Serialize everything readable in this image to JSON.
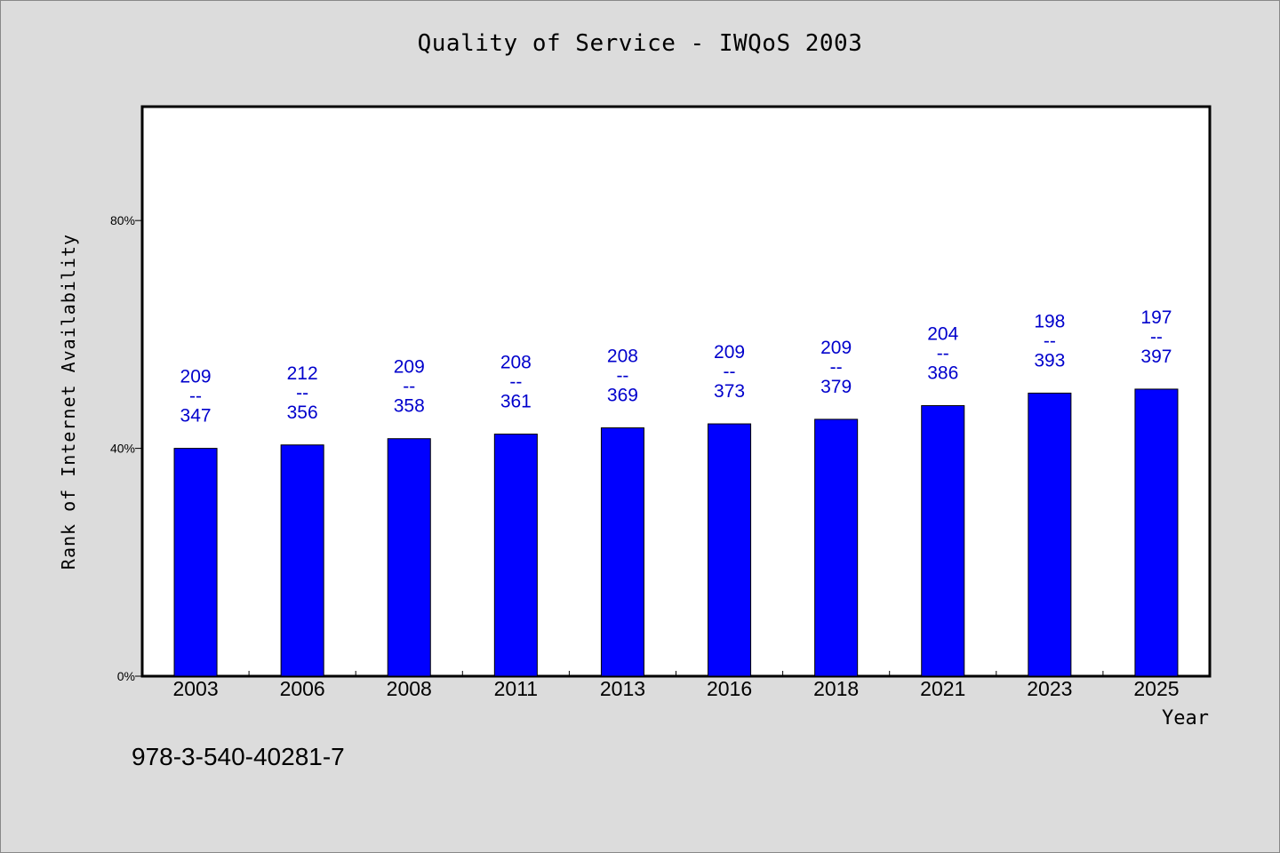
{
  "chart_data": {
    "type": "bar",
    "title": "Quality of Service - IWQoS 2003",
    "xlabel": "Year",
    "ylabel": "Rank of Internet Availability",
    "categories": [
      "2003",
      "2006",
      "2008",
      "2011",
      "2013",
      "2016",
      "2018",
      "2021",
      "2023",
      "2025"
    ],
    "values": [
      40.0,
      40.6,
      41.7,
      42.5,
      43.6,
      44.3,
      45.1,
      47.5,
      49.7,
      50.4
    ],
    "data_labels": [
      {
        "top": "209",
        "mid": "--",
        "bottom": "347"
      },
      {
        "top": "212",
        "mid": "--",
        "bottom": "356"
      },
      {
        "top": "209",
        "mid": "--",
        "bottom": "358"
      },
      {
        "top": "208",
        "mid": "--",
        "bottom": "361"
      },
      {
        "top": "208",
        "mid": "--",
        "bottom": "369"
      },
      {
        "top": "209",
        "mid": "--",
        "bottom": "373"
      },
      {
        "top": "209",
        "mid": "--",
        "bottom": "379"
      },
      {
        "top": "204",
        "mid": "--",
        "bottom": "386"
      },
      {
        "top": "198",
        "mid": "--",
        "bottom": "393"
      },
      {
        "top": "197",
        "mid": "--",
        "bottom": "397"
      }
    ],
    "yticks": [
      0,
      40,
      80
    ],
    "ytick_labels": [
      "0%",
      "40%",
      "80%"
    ],
    "ylim": [
      0,
      100
    ],
    "grid": false,
    "colors": {
      "bar": "#0000ff",
      "label": "#0000cc",
      "background": "#dcdcdc",
      "plot_area": "#ffffff"
    }
  },
  "footer": {
    "id_text": "978-3-540-40281-7"
  }
}
